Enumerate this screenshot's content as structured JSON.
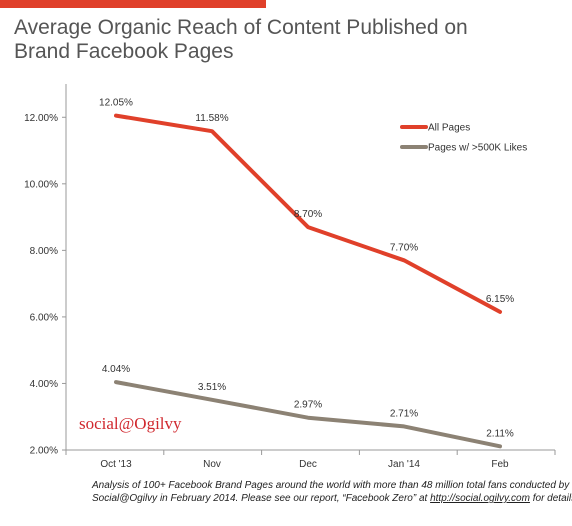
{
  "title_line1": "Average Organic Reach of Content Published on",
  "title_line2": "Brand Facebook Pages",
  "brand": "social@Ogilvy",
  "footnote": {
    "line1": "Analysis of 100+ Facebook Brand Pages around the world with more than 48 million total fans conducted by",
    "line2_before": "Social@Ogilvy in February 2014. Please see our report, “Facebook Zero” at ",
    "line2_link": "http://social.ogilvy.com",
    "line2_after": " for details."
  },
  "colors": {
    "accent": "#e0402a",
    "series_all": "#e0402a",
    "series_500k": "#8c8274",
    "brand": "#d0282e"
  },
  "chart_data": {
    "type": "line",
    "categories": [
      "Oct '13",
      "Nov",
      "Dec",
      "Jan '14",
      "Feb"
    ],
    "series": [
      {
        "name": "All Pages",
        "values": [
          12.05,
          11.58,
          8.7,
          7.7,
          6.15
        ],
        "labels": [
          "12.05%",
          "11.58%",
          "8.70%",
          "7.70%",
          "6.15%"
        ]
      },
      {
        "name": "Pages w/ >500K Likes",
        "values": [
          4.04,
          3.51,
          2.97,
          2.71,
          2.11
        ],
        "labels": [
          "4.04%",
          "3.51%",
          "2.97%",
          "2.71%",
          "2.11%"
        ]
      }
    ],
    "yticks": [
      "2.00%",
      "4.00%",
      "6.00%",
      "8.00%",
      "10.00%",
      "12.00%"
    ],
    "ylim": [
      2,
      13
    ],
    "grid": false,
    "legend": "top-right"
  }
}
